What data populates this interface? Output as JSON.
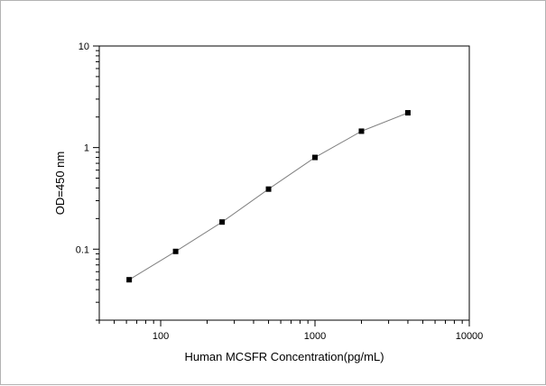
{
  "chart_data": {
    "type": "scatter",
    "title": "",
    "xlabel": "Human MCSFR Concentration(pg/mL)",
    "ylabel": "OD=450 nm",
    "xscale": "log",
    "yscale": "log",
    "xlim": [
      40,
      10000
    ],
    "ylim": [
      0.02,
      10
    ],
    "x_ticks": [
      "100",
      "1000",
      "10000"
    ],
    "y_ticks": [
      "0.1",
      "1",
      "10"
    ],
    "grid": false,
    "legend": "none",
    "series": [
      {
        "x": [
          62.5,
          125,
          250,
          500,
          1000,
          2000,
          4000
        ],
        "y": [
          0.05,
          0.095,
          0.185,
          0.39,
          0.8,
          1.45,
          2.2
        ],
        "line_color": "#808080",
        "marker_color": "#000000",
        "marker": "square"
      }
    ]
  }
}
